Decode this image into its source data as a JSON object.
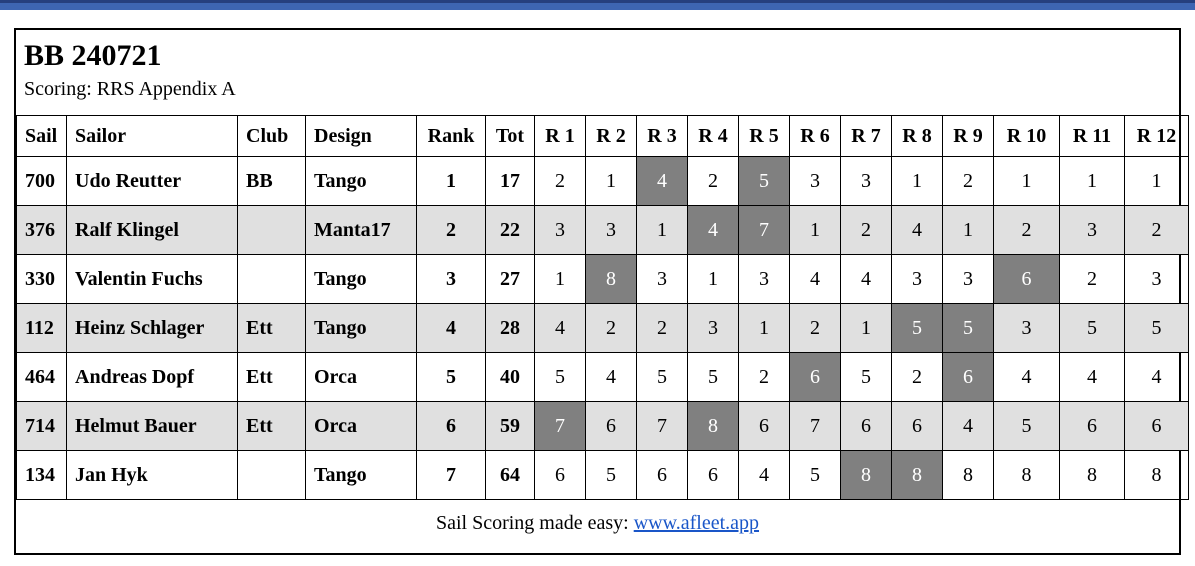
{
  "report": {
    "title": "BB 240721",
    "subtitle": "Scoring: RRS Appendix A"
  },
  "table": {
    "columns": [
      "Sail",
      "Sailor",
      "Club",
      "Design",
      "Rank",
      "Tot",
      "R 1",
      "R 2",
      "R 3",
      "R 4",
      "R 5",
      "R 6",
      "R 7",
      "R 8",
      "R 9",
      "R 10",
      "R 11",
      "R 12"
    ],
    "rows": [
      {
        "sail": "700",
        "sailor": "Udo Reutter",
        "club": "BB",
        "design": "Tango",
        "rank": "1",
        "tot": "17",
        "races": [
          2,
          1,
          4,
          2,
          5,
          3,
          3,
          1,
          2,
          1,
          1,
          1
        ],
        "discard_indices": [
          2,
          4
        ]
      },
      {
        "sail": "376",
        "sailor": "Ralf Klingel",
        "club": "",
        "design": "Manta17",
        "rank": "2",
        "tot": "22",
        "races": [
          3,
          3,
          1,
          4,
          7,
          1,
          2,
          4,
          1,
          2,
          3,
          2
        ],
        "discard_indices": [
          3,
          4
        ]
      },
      {
        "sail": "330",
        "sailor": "Valentin Fuchs",
        "club": "",
        "design": "Tango",
        "rank": "3",
        "tot": "27",
        "races": [
          1,
          8,
          3,
          1,
          3,
          4,
          4,
          3,
          3,
          6,
          2,
          3
        ],
        "discard_indices": [
          1,
          9
        ]
      },
      {
        "sail": "112",
        "sailor": "Heinz Schlager",
        "club": "Ett",
        "design": "Tango",
        "rank": "4",
        "tot": "28",
        "races": [
          4,
          2,
          2,
          3,
          1,
          2,
          1,
          5,
          5,
          3,
          5,
          5
        ],
        "discard_indices": [
          7,
          8
        ]
      },
      {
        "sail": "464",
        "sailor": "Andreas Dopf",
        "club": "Ett",
        "design": "Orca",
        "rank": "5",
        "tot": "40",
        "races": [
          5,
          4,
          5,
          5,
          2,
          6,
          5,
          2,
          6,
          4,
          4,
          4
        ],
        "discard_indices": [
          5,
          8
        ]
      },
      {
        "sail": "714",
        "sailor": "Helmut Bauer",
        "club": "Ett",
        "design": "Orca",
        "rank": "6",
        "tot": "59",
        "races": [
          7,
          6,
          7,
          8,
          6,
          7,
          6,
          6,
          4,
          5,
          6,
          6
        ],
        "discard_indices": [
          0,
          3
        ]
      },
      {
        "sail": "134",
        "sailor": "Jan Hyk",
        "club": "",
        "design": "Tango",
        "rank": "7",
        "tot": "64",
        "races": [
          6,
          5,
          6,
          6,
          4,
          5,
          8,
          8,
          8,
          8,
          8,
          8
        ],
        "discard_indices": [
          6,
          7
        ]
      }
    ]
  },
  "footer": {
    "text": "Sail Scoring made easy:",
    "link_label": "www.afleet.app"
  },
  "colors": {
    "discard_cell_bg": "#808080",
    "stripe_row_bg": "#e0e0e0",
    "link_blue": "#1a56c8",
    "top_bar_blue": "#3e65b2",
    "top_bar_dark": "#263f7e"
  }
}
